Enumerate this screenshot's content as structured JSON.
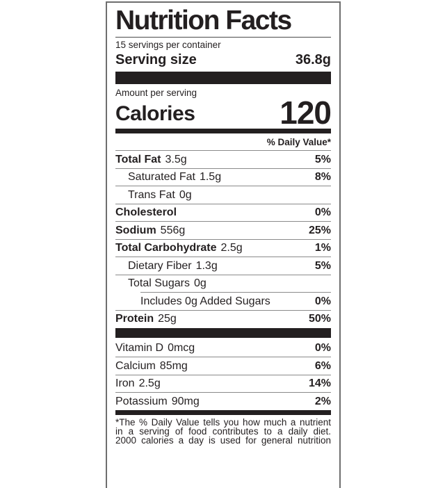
{
  "label": {
    "title": "Nutrition Facts",
    "servings_per_container": "15 servings per container",
    "serving_size_label": "Serving size",
    "serving_size_value": "36.8g",
    "amount_per_serving": "Amount per serving",
    "calories_label": "Calories",
    "calories_value": "120",
    "daily_value_header": "% Daily Value*",
    "nutrients": [
      {
        "name": "Total Fat",
        "amount": "3.5g",
        "dv": "5%",
        "bold": true,
        "indent": 0
      },
      {
        "name": "Saturated Fat",
        "amount": "1.5g",
        "dv": "8%",
        "bold": false,
        "indent": 1
      },
      {
        "name": "Trans Fat",
        "amount": "0g",
        "dv": "",
        "bold": false,
        "indent": 1
      },
      {
        "name": "Cholesterol",
        "amount": "",
        "dv": "0%",
        "bold": true,
        "indent": 0
      },
      {
        "name": "Sodium",
        "amount": "556g",
        "dv": "25%",
        "bold": true,
        "indent": 0
      },
      {
        "name": "Total Carbohydrate",
        "amount": "2.5g",
        "dv": "1%",
        "bold": true,
        "indent": 0
      },
      {
        "name": "Dietary Fiber",
        "amount": "1.3g",
        "dv": "5%",
        "bold": false,
        "indent": 1
      },
      {
        "name": "Total Sugars",
        "amount": "0g",
        "dv": "",
        "bold": false,
        "indent": 1
      },
      {
        "name": "Includes 0g Added Sugars",
        "amount": "",
        "dv": "0%",
        "bold": false,
        "indent": 2,
        "rule_indent": true
      },
      {
        "name": "Protein",
        "amount": "25g",
        "dv": "50%",
        "bold": true,
        "indent": 0
      }
    ],
    "micronutrients": [
      {
        "name": "Vitamin D",
        "amount": "0mcg",
        "dv": "0%"
      },
      {
        "name": "Calcium",
        "amount": "85mg",
        "dv": "6%"
      },
      {
        "name": "Iron",
        "amount": "2.5g",
        "dv": "14%"
      },
      {
        "name": "Potassium",
        "amount": "90mg",
        "dv": "2%"
      }
    ],
    "footnote_lines": [
      "*The % Daily Value tells you how much a nutrient",
      "in a serving of food contributes to a daily diet.",
      "2000 calories a day is used for general nutrition"
    ],
    "colors": {
      "text": "#231f20",
      "bar": "#231f20",
      "thin_rule": "#8a8a8a",
      "outer_border": "#6e6e6e",
      "background": "#ffffff"
    }
  }
}
